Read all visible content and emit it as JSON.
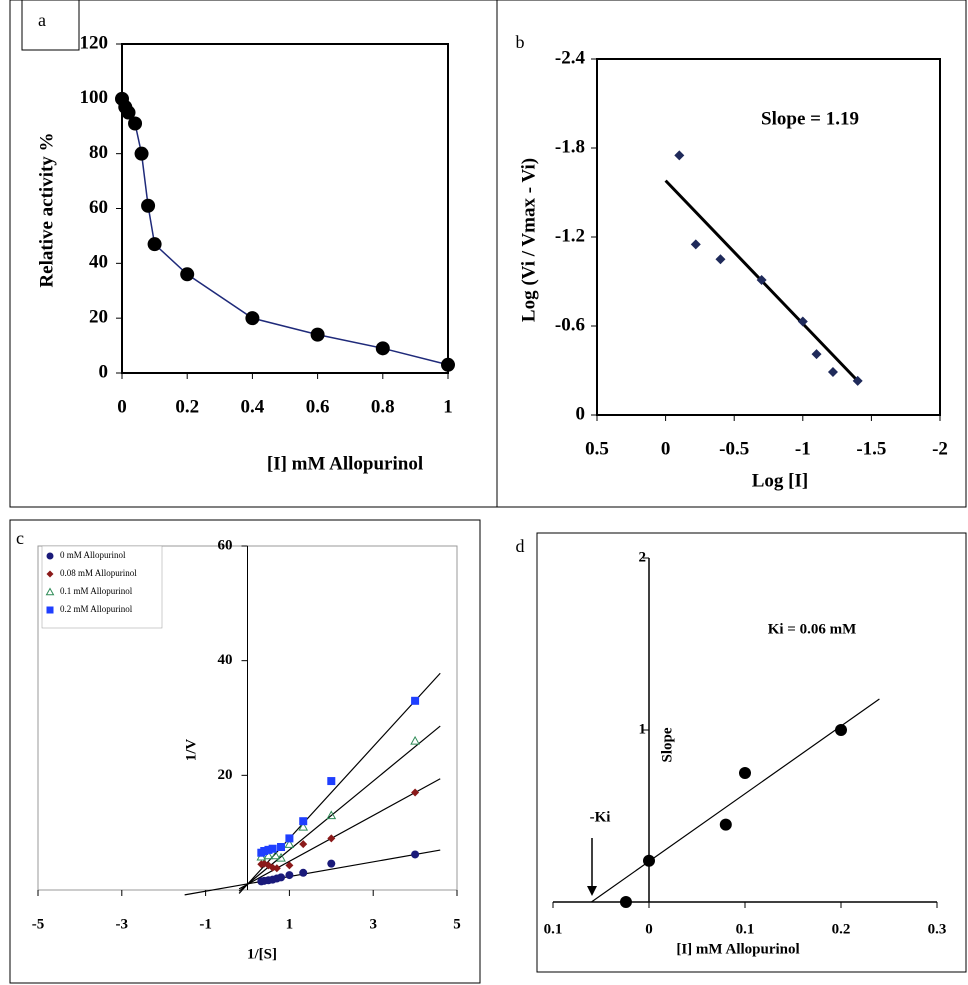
{
  "chart_data": [
    {
      "type": "line",
      "panel_label": "a",
      "x_label": "[I] mM Allopurinol",
      "y_label": "Relative activity %",
      "xlim": [
        0,
        1
      ],
      "ylim": [
        0,
        120
      ],
      "xticks": [
        0,
        0.2,
        0.4,
        0.6,
        0.8,
        1
      ],
      "yticks": [
        0,
        20,
        40,
        60,
        80,
        100,
        120
      ],
      "series": [
        {
          "x": [
            0,
            0.01,
            0.02,
            0.04,
            0.06,
            0.08,
            0.1,
            0.2,
            0.4,
            0.6,
            0.8,
            1
          ],
          "values": [
            100,
            97,
            95,
            91,
            80,
            61,
            47,
            36,
            20,
            14,
            9,
            3
          ],
          "color": "#1f2a7a",
          "marker": "circle",
          "marker_color": "#000000"
        }
      ]
    },
    {
      "type": "scatter",
      "panel_label": "b",
      "x_label": "Log [I]",
      "y_label": "Log (Vi / Vmax - Vi)",
      "annotations": [
        "Slope = 1.19"
      ],
      "xlim": [
        0.5,
        -2
      ],
      "ylim": [
        0,
        -2.4
      ],
      "xticks": [
        0.5,
        0,
        -0.5,
        -1,
        -1.5,
        -2
      ],
      "yticks": [
        0,
        -0.6,
        -1.2,
        -1.8,
        -2.4
      ],
      "series": [
        {
          "x": [
            -0.1,
            -0.22,
            -0.4,
            -0.7,
            -1,
            -1.1,
            -1.22,
            -1.4
          ],
          "values": [
            -1.75,
            -1.15,
            -1.05,
            -0.91,
            -0.63,
            -0.41,
            -0.29,
            -0.23
          ],
          "color": "#1f2a5a",
          "marker": "diamond"
        }
      ],
      "trendlines": [
        {
          "x": [
            0,
            -1.4
          ],
          "y": [
            -1.58,
            -0.23
          ],
          "color": "#000000"
        }
      ]
    },
    {
      "type": "scatter",
      "panel_label": "c",
      "x_label": "1/[S]",
      "y_label": "1/V",
      "legend": "upper left",
      "xlim": [
        -5,
        5
      ],
      "ylim": [
        0,
        60
      ],
      "xticks": [
        -5,
        -3,
        -1,
        1,
        3,
        5
      ],
      "yticks": [
        20,
        40,
        60
      ],
      "series": [
        {
          "name": "0 mM Allopurinol",
          "color": "#1a1a7a",
          "marker": "circle",
          "x": [
            0.33,
            0.4,
            0.5,
            0.6,
            0.7,
            0.8,
            1,
            1.33,
            2,
            4
          ],
          "values": [
            1.5,
            1.6,
            1.7,
            1.8,
            2,
            2.2,
            2.6,
            3,
            4.6,
            6.2
          ]
        },
        {
          "name": "0.08 mM Allopurinol",
          "color": "#8b1a1a",
          "marker": "diamond",
          "x": [
            0.33,
            0.4,
            0.5,
            0.6,
            0.7,
            1,
            1.33,
            2,
            4
          ],
          "values": [
            4.5,
            4.6,
            4.3,
            3.9,
            3.8,
            4.3,
            8,
            9,
            17
          ]
        },
        {
          "name": "0.1 mM Allopurinol",
          "color": "#2e8b57",
          "marker": "triangle",
          "x": [
            0.33,
            0.5,
            0.67,
            0.8,
            1,
            1.33,
            2,
            4
          ],
          "values": [
            5.8,
            6,
            6,
            5.6,
            8,
            11,
            13,
            26
          ]
        },
        {
          "name": "0.2 mM Allopurinol",
          "color": "#1f3fff",
          "marker": "square",
          "x": [
            0.33,
            0.4,
            0.5,
            0.6,
            0.8,
            1,
            1.33,
            2,
            4
          ],
          "values": [
            6.5,
            6.8,
            7,
            7.2,
            7.5,
            9,
            12,
            19,
            33
          ]
        }
      ],
      "trendlines": [
        {
          "x": [
            -1.5,
            4.6
          ],
          "y": [
            -0.85,
            6.96
          ],
          "color": "#000000"
        },
        {
          "x": [
            -0.2,
            4.6
          ],
          "y": [
            0.2,
            19.4
          ],
          "color": "#000000"
        },
        {
          "x": [
            -0.2,
            4.6
          ],
          "y": [
            -0.2,
            28.6
          ],
          "color": "#000000"
        },
        {
          "x": [
            -0.2,
            4.6
          ],
          "y": [
            -0.6,
            37.8
          ],
          "color": "#000000"
        }
      ]
    },
    {
      "type": "scatter",
      "panel_label": "d",
      "x_label": "[I] mM Allopurinol",
      "y_label": "Slope",
      "annotations": [
        "Ki = 0.06 mM",
        "-Ki"
      ],
      "xlim": [
        -0.1,
        0.3
      ],
      "ylim": [
        0,
        2
      ],
      "xticks": [
        {
          "value": -0.1,
          "label": "0.1"
        },
        0,
        0.1,
        0.2,
        0.3
      ],
      "yticks": [
        1,
        2
      ],
      "series": [
        {
          "x": [
            -0.024,
            0,
            0.08,
            0.1,
            0.2
          ],
          "values": [
            0,
            0.24,
            0.45,
            0.75,
            1.0
          ],
          "color": "#000000",
          "marker": "circle"
        }
      ],
      "trendlines": [
        {
          "x": [
            -0.06,
            0.24
          ],
          "y": [
            0,
            1.18
          ],
          "color": "#000000"
        }
      ]
    }
  ]
}
